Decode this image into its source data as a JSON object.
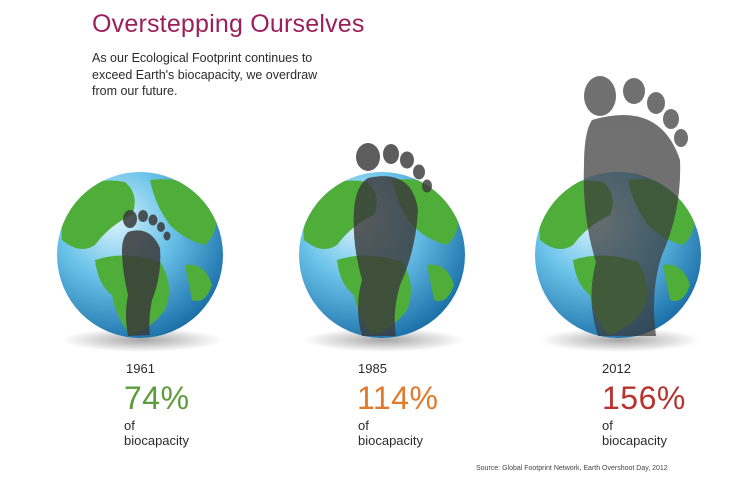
{
  "title": "Overstepping Ourselves",
  "subtitle": "As our Ecological Footprint continues to exceed Earth's biocapacity, we overdraw from our future.",
  "panels": [
    {
      "year": "1961",
      "percent": "74%",
      "label": "of biocapacity",
      "color": "#5c9c3a"
    },
    {
      "year": "1985",
      "percent": "114%",
      "label": "of biocapacity",
      "color": "#e07a2c"
    },
    {
      "year": "2012",
      "percent": "156%",
      "label": "of biocapacity",
      "color": "#b8332f"
    }
  ],
  "source": "Source: Global Footprint Network, Earth Overshoot Day, 2012",
  "colors": {
    "ocean": "#4fb3e0",
    "land": "#4fae3a",
    "footprint": "#3a3a3a",
    "title": "#9c1f5b"
  }
}
